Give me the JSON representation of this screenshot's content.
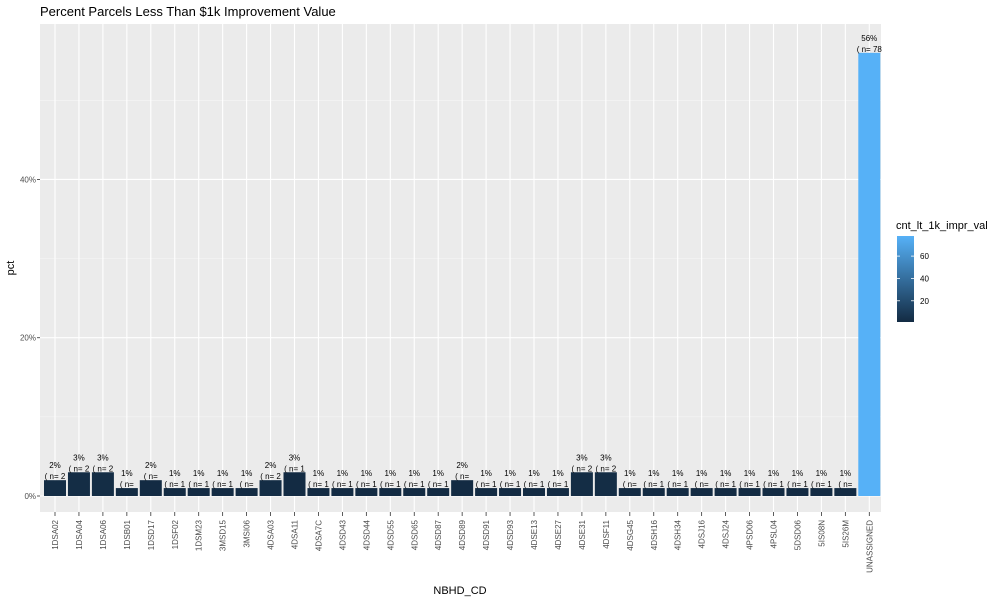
{
  "chart_data": {
    "type": "bar",
    "title": "Percent Parcels Less Than $1k Improvement Value",
    "xlabel": "NBHD_CD",
    "ylabel": "pct",
    "ylim": [
      0,
      0.58
    ],
    "y_ticks": [
      {
        "value": 0,
        "label": "0%"
      },
      {
        "value": 0.2,
        "label": "20%"
      },
      {
        "value": 0.4,
        "label": "40%"
      }
    ],
    "grid": true,
    "legend": {
      "title": "cnt_lt_1k_impr_val",
      "position": "right",
      "range": [
        1,
        78
      ],
      "ticks": [
        {
          "value": 20,
          "label": "20"
        },
        {
          "value": 40,
          "label": "40"
        },
        {
          "value": 60,
          "label": "60"
        }
      ],
      "low_color": "#132B43",
      "high_color": "#56B1F7"
    },
    "categories": [
      "1DSA02",
      "1DSA04",
      "1DSA06",
      "1DSB01",
      "1DSD17",
      "1DSF02",
      "1DSM23",
      "3MSD15",
      "3MSI06",
      "4DSA03",
      "4DSA11",
      "4DSA7C",
      "4DSD43",
      "4DSD44",
      "4DSD55",
      "4DSD65",
      "4DSD87",
      "4DSD89",
      "4DSD91",
      "4DSD93",
      "4DSE13",
      "4DSE27",
      "4DSE31",
      "4DSF11",
      "4DSG45",
      "4DSH16",
      "4DSH34",
      "4DSJ16",
      "4DSJ24",
      "4PSD06",
      "4PSL04",
      "5DSD06",
      "5IS08N",
      "5IS26M",
      "UNASSIGNED"
    ],
    "values": [
      0.02,
      0.03,
      0.03,
      0.01,
      0.02,
      0.01,
      0.01,
      0.01,
      0.01,
      0.02,
      0.03,
      0.01,
      0.01,
      0.01,
      0.01,
      0.01,
      0.01,
      0.02,
      0.01,
      0.01,
      0.01,
      0.01,
      0.03,
      0.03,
      0.01,
      0.01,
      0.01,
      0.01,
      0.01,
      0.01,
      0.01,
      0.01,
      0.01,
      0.01,
      0.56
    ],
    "pct_labels": [
      "2%",
      "3%",
      "3%",
      "1%",
      "2%",
      "1%",
      "1%",
      "1%",
      "1%",
      "2%",
      "3%",
      "1%",
      "1%",
      "1%",
      "1%",
      "1%",
      "1%",
      "2%",
      "1%",
      "1%",
      "1%",
      "1%",
      "3%",
      "3%",
      "1%",
      "1%",
      "1%",
      "1%",
      "1%",
      "1%",
      "1%",
      "1%",
      "1%",
      "1%",
      "56%"
    ],
    "counts": [
      2,
      2,
      2,
      1,
      1,
      1,
      1,
      1,
      1,
      2,
      1,
      1,
      1,
      1,
      1,
      1,
      1,
      1,
      1,
      1,
      1,
      1,
      2,
      2,
      1,
      1,
      1,
      1,
      1,
      1,
      1,
      1,
      1,
      1,
      78
    ],
    "count_labels": [
      "( n= 2",
      "( n= 2",
      "( n= 2",
      "( n=",
      "( n=",
      "( n= 1",
      "( n= 1",
      "( n= 1",
      "( n=",
      "( n= 2",
      "( n= 1",
      "( n= 1",
      "( n= 1",
      "( n= 1",
      "( n= 1",
      "( n= 1",
      "( n= 1",
      "( n=",
      "( n= 1",
      "( n= 1",
      "( n= 1",
      "( n= 1",
      "( n= 2",
      "( n= 2",
      "( n=",
      "( n= 1",
      "( n= 1",
      "( n=",
      "( n= 1",
      "( n= 1",
      "( n= 1",
      "( n= 1",
      "( n= 1",
      "( n=",
      "( n= 78"
    ]
  }
}
